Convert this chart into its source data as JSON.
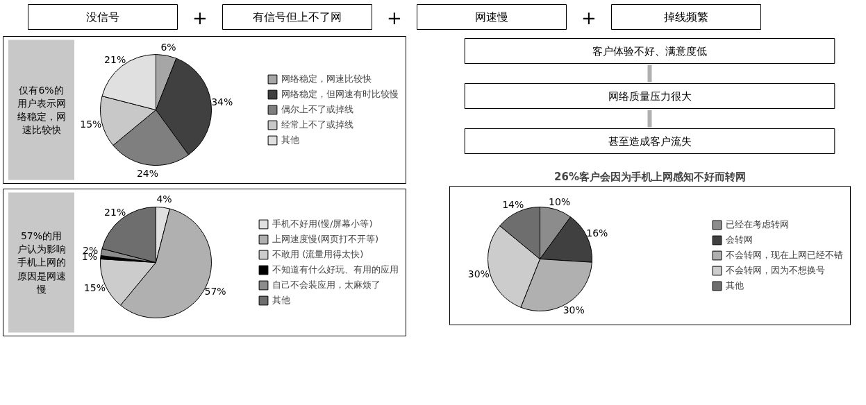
{
  "chart_data": [
    {
      "type": "pie",
      "categories": [
        "网络稳定，网速比较快",
        "网络稳定，但网速有时比较慢",
        "偶尔上不了或掉线",
        "经常上不了或掉线",
        "其他"
      ],
      "values": [
        6,
        34,
        24,
        15,
        21
      ],
      "colors": [
        "#a6a6a6",
        "#404040",
        "#7f7f7f",
        "#c8c8c8",
        "#e0e0e0"
      ],
      "value_labels": [
        "6%",
        "34%",
        "24%",
        "15%",
        "21%"
      ],
      "legend": "right",
      "annotations": [
        "没信号",
        "+",
        "有信号但上不了网",
        "+",
        "网速慢",
        "+",
        "掉线频繁",
        "仅有6%的用户表示网络稳定，网速比较快"
      ]
    },
    {
      "type": "pie",
      "categories": [
        "手机不好用(慢/屏幕小等)",
        "上网速度慢(网页打不开等)",
        "不敢用 (流量用得太快)",
        "不知道有什么好玩、有用的应用",
        "自己不会装应用，太麻烦了",
        "其他"
      ],
      "values": [
        4,
        57,
        15,
        1,
        2,
        21
      ],
      "colors": [
        "#e0e0e0",
        "#b0b0b0",
        "#cccccc",
        "#000000",
        "#8c8c8c",
        "#6e6e6e"
      ],
      "value_labels": [
        "4%",
        "57%",
        "15%",
        "1%",
        "2%",
        "21%"
      ],
      "legend": "right",
      "annotations": [
        "57%的用户认为影响手机上网的原因是网速慢"
      ]
    },
    {
      "type": "pie",
      "title": "26%客户会因为手机上网感知不好而转网",
      "categories": [
        "已经在考虑转网",
        "会转网",
        "不会转网，现在上网已经不错",
        "不会转网，因为不想换号",
        "其他"
      ],
      "values": [
        10,
        16,
        30,
        30,
        14
      ],
      "colors": [
        "#8c8c8c",
        "#404040",
        "#b0b0b0",
        "#cccccc",
        "#6e6e6e"
      ],
      "value_labels": [
        "10%",
        "16%",
        "30%",
        "30%",
        "14%"
      ],
      "legend": "right",
      "annotations": [
        "客户体验不好、满意度低",
        "网络质量压力很大",
        "甚至造成客户流失"
      ]
    }
  ]
}
